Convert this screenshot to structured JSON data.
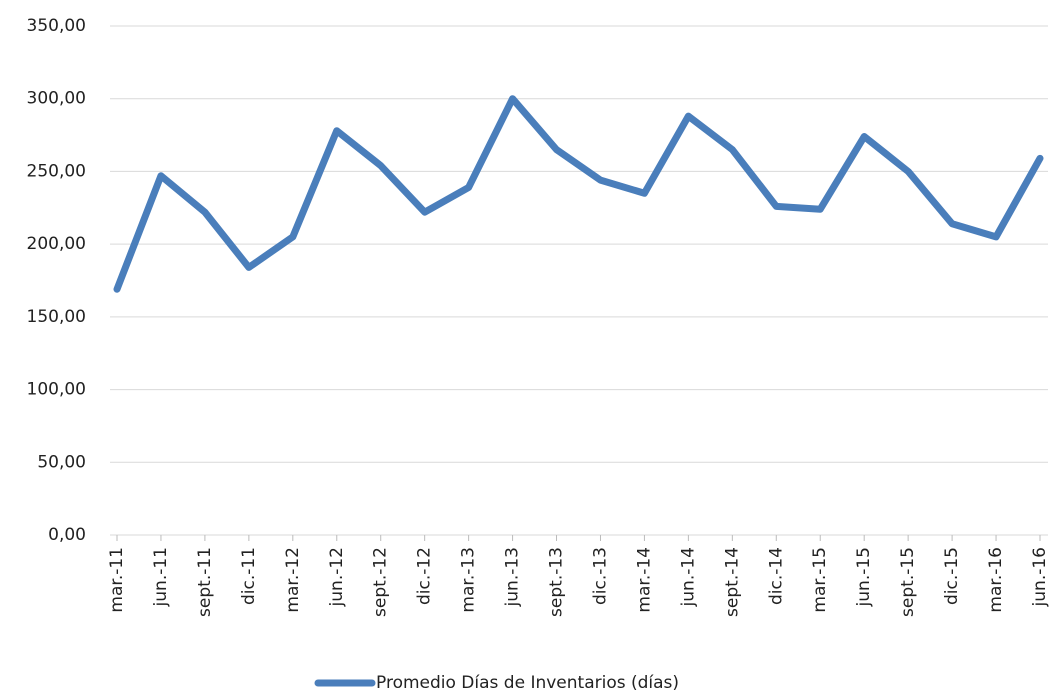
{
  "chart_data": {
    "type": "line",
    "categories": [
      "mar.-11",
      "jun.-11",
      "sept.-11",
      "dic.-11",
      "mar.-12",
      "jun.-12",
      "sept.-12",
      "dic.-12",
      "mar.-13",
      "jun.-13",
      "sept.-13",
      "dic.-13",
      "mar.-14",
      "jun.-14",
      "sept.-14",
      "dic.-14",
      "mar.-15",
      "jun.-15",
      "sept.-15",
      "dic.-15",
      "mar.-16",
      "jun.-16"
    ],
    "series": [
      {
        "name": "Promedio Días de Inventarios (días)",
        "color": "#4a7ebb",
        "values": [
          169,
          247,
          222,
          184,
          205,
          278,
          254,
          222,
          239,
          300,
          265,
          244,
          235,
          288,
          265,
          226,
          224,
          274,
          250,
          214,
          205,
          259
        ]
      }
    ],
    "ylim": [
      0,
      350
    ],
    "yticks": [
      {
        "value": 0,
        "label": "0,00"
      },
      {
        "value": 50,
        "label": "50,00"
      },
      {
        "value": 100,
        "label": "100,00"
      },
      {
        "value": 150,
        "label": "150,00"
      },
      {
        "value": 200,
        "label": "200,00"
      },
      {
        "value": 250,
        "label": "250,00"
      },
      {
        "value": 300,
        "label": "300,00"
      },
      {
        "value": 350,
        "label": "350,00"
      }
    ],
    "grid": true,
    "legend": "bottom"
  }
}
